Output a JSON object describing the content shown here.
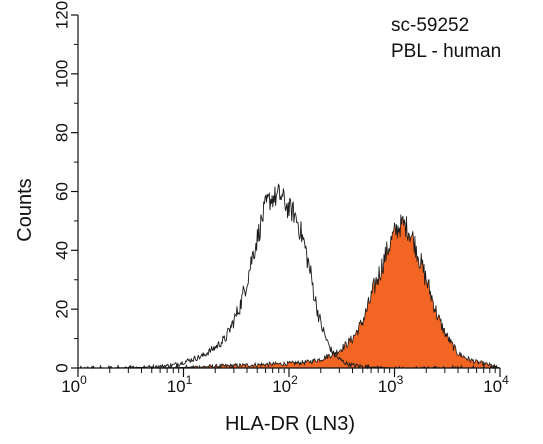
{
  "chart_data": {
    "type": "area",
    "title": "",
    "xlabel": "HLA-DR (LN3)",
    "ylabel": "Counts",
    "x_scale": "log",
    "xlim": [
      1,
      10000
    ],
    "ylim": [
      0,
      120
    ],
    "y_ticks": [
      0,
      20,
      40,
      60,
      80,
      100,
      120
    ],
    "x_ticks": [
      {
        "base": "10",
        "exp": "0"
      },
      {
        "base": "10",
        "exp": "1"
      },
      {
        "base": "10",
        "exp": "2"
      },
      {
        "base": "10",
        "exp": "3"
      },
      {
        "base": "10",
        "exp": "4"
      }
    ],
    "annotations": [
      "sc-59252",
      "PBL - human"
    ],
    "grid": false,
    "colors": {
      "stained_fill": "#f26522",
      "outline": "#1a1a1a"
    },
    "series": [
      {
        "style": "outline",
        "x": [
          1,
          2,
          4,
          6,
          8,
          10,
          15,
          20,
          25,
          30,
          35,
          40,
          45,
          50,
          55,
          60,
          65,
          70,
          75,
          80,
          85,
          90,
          95,
          100,
          110,
          120,
          130,
          140,
          150,
          160,
          180,
          200,
          230,
          260,
          300,
          350,
          400,
          500,
          700,
          1000,
          10000
        ],
        "y": [
          0,
          0,
          0.2,
          0.5,
          1,
          2,
          4,
          7,
          10,
          16,
          22,
          30,
          38,
          44,
          50,
          55,
          57,
          58,
          58,
          59,
          58,
          57,
          55,
          54,
          53,
          50,
          46,
          42,
          37,
          32,
          22,
          15,
          9,
          5,
          3,
          1.5,
          1,
          0.5,
          0.2,
          0,
          0
        ]
      },
      {
        "style": "filled",
        "x": [
          1,
          5,
          10,
          30,
          60,
          100,
          150,
          200,
          250,
          300,
          350,
          400,
          450,
          500,
          550,
          600,
          650,
          700,
          800,
          900,
          1000,
          1100,
          1200,
          1300,
          1400,
          1500,
          1600,
          1800,
          2000,
          2300,
          2600,
          3000,
          3500,
          4000,
          5000,
          6000,
          7000,
          8000,
          9000,
          10000
        ],
        "y": [
          0,
          0,
          0.2,
          0.8,
          1.2,
          1.5,
          2,
          3,
          4.5,
          6,
          8,
          10,
          13,
          16,
          20,
          24,
          28,
          31,
          37,
          42,
          46,
          48,
          49,
          48,
          46,
          44,
          41,
          35,
          30,
          23,
          17,
          12,
          8,
          5,
          3,
          2,
          1.5,
          1,
          0.5,
          0
        ]
      }
    ]
  }
}
